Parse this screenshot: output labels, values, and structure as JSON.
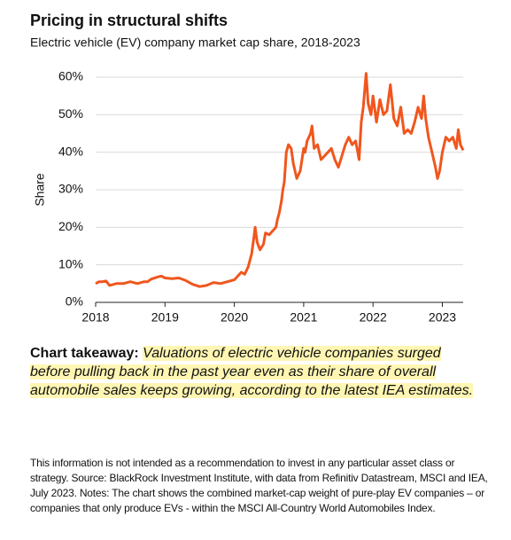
{
  "chart_data": {
    "type": "line",
    "title": "Pricing in structural shifts",
    "subtitle": "Electric vehicle (EV) company market cap share, 2018-2023",
    "y_label": "Share",
    "color": "#f0561d",
    "grid": true,
    "xlim": [
      2018,
      2023.3
    ],
    "xticks": [
      2018,
      2019,
      2020,
      2021,
      2022,
      2023
    ],
    "ylim": [
      0,
      60
    ],
    "yticks": [
      {
        "value": 0,
        "label": "0%"
      },
      {
        "value": 10,
        "label": "10%"
      },
      {
        "value": 20,
        "label": "20%"
      },
      {
        "value": 30,
        "label": "30%"
      },
      {
        "value": 40,
        "label": "40%"
      },
      {
        "value": 50,
        "label": "50%"
      },
      {
        "value": 60,
        "label": "60%"
      }
    ],
    "x": [
      2018.0,
      2018.05,
      2018.1,
      2018.15,
      2018.2,
      2018.3,
      2018.4,
      2018.5,
      2018.6,
      2018.7,
      2018.75,
      2018.8,
      2018.9,
      2018.95,
      2019.0,
      2019.1,
      2019.2,
      2019.3,
      2019.4,
      2019.45,
      2019.5,
      2019.6,
      2019.7,
      2019.8,
      2019.9,
      2020.0,
      2020.1,
      2020.15,
      2020.2,
      2020.25,
      2020.28,
      2020.3,
      2020.33,
      2020.37,
      2020.42,
      2020.45,
      2020.5,
      2020.55,
      2020.6,
      2020.62,
      2020.65,
      2020.68,
      2020.7,
      2020.72,
      2020.75,
      2020.78,
      2020.82,
      2020.85,
      2020.9,
      2020.95,
      2021.0,
      2021.02,
      2021.05,
      2021.1,
      2021.12,
      2021.15,
      2021.2,
      2021.25,
      2021.3,
      2021.35,
      2021.4,
      2021.45,
      2021.5,
      2021.55,
      2021.6,
      2021.65,
      2021.7,
      2021.75,
      2021.8,
      2021.83,
      2021.86,
      2021.9,
      2021.93,
      2021.97,
      2022.0,
      2022.05,
      2022.1,
      2022.15,
      2022.2,
      2022.25,
      2022.3,
      2022.35,
      2022.4,
      2022.45,
      2022.5,
      2022.55,
      2022.6,
      2022.65,
      2022.7,
      2022.73,
      2022.76,
      2022.8,
      2022.85,
      2022.9,
      2022.93,
      2022.96,
      2023.0,
      2023.05,
      2023.1,
      2023.15,
      2023.2,
      2023.23,
      2023.26,
      2023.3
    ],
    "values": [
      5,
      5.5,
      5.5,
      5.7,
      4.5,
      5,
      5,
      5.5,
      5,
      5.5,
      5.5,
      6.2,
      6.8,
      7,
      6.5,
      6.3,
      6.5,
      5.8,
      4.8,
      4.5,
      4.2,
      4.5,
      5.3,
      5,
      5.5,
      6,
      8,
      7.5,
      9.5,
      13,
      17,
      20,
      16,
      14,
      15.5,
      18.5,
      18,
      19,
      20,
      22,
      24,
      27,
      30,
      32,
      40,
      42,
      41,
      37,
      33,
      35,
      41,
      40,
      43,
      45,
      47,
      41,
      42,
      38,
      39,
      40,
      41,
      38,
      36,
      39,
      42,
      44,
      42,
      43,
      38,
      48,
      52,
      61,
      53,
      50,
      55,
      48,
      54,
      50,
      51,
      58,
      49,
      47,
      52,
      45,
      46,
      45,
      48,
      52,
      49,
      55,
      49,
      44,
      40,
      36,
      33,
      35,
      40,
      44,
      43,
      44,
      41,
      46,
      42,
      40.5
    ]
  },
  "takeaway": {
    "label": "Chart takeaway:",
    "text": "Valuations of electric vehicle companies surged before pulling back in the past year even as their share of overall automobile sales keeps growing, according to the latest IEA estimates."
  },
  "footnote": "This information is not intended as a recommendation to invest in any particular asset class or strategy. Source: BlackRock Investment Institute, with data from Refinitiv Datastream, MSCI and IEA, July 2023. Notes: The chart shows the combined market-cap weight of pure-play EV companies – or companies that only produce EVs - within the MSCI All-Country World Automobiles Index."
}
